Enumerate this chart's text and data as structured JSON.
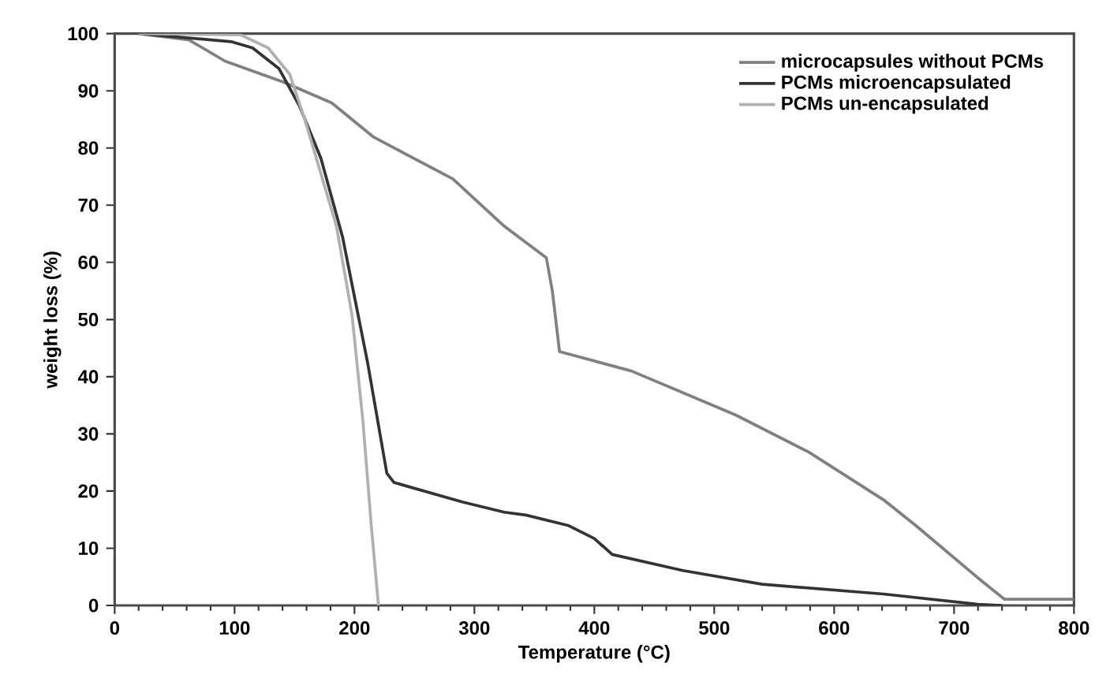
{
  "chart_data": {
    "type": "line",
    "xlabel": "Temperature (°C)",
    "ylabel": "weight loss (%)",
    "xlim": [
      0,
      800
    ],
    "ylim": [
      0,
      100
    ],
    "xticks": [
      0,
      100,
      200,
      300,
      400,
      500,
      600,
      700,
      800
    ],
    "yticks": [
      0,
      10,
      20,
      30,
      40,
      50,
      60,
      70,
      80,
      90,
      100
    ],
    "grid": false,
    "legend": "top right",
    "marker": "none",
    "line_style": "solid",
    "series": [
      {
        "name": "microcapsules without PCMs",
        "color": "#808080",
        "x": [
          20,
          62,
          92,
          141,
          181,
          216,
          282,
          325,
          360,
          365,
          371,
          431,
          518,
          579,
          641,
          668,
          720,
          742,
          800
        ],
        "values": [
          100,
          98.9,
          95.2,
          91.5,
          87.9,
          81.9,
          74.6,
          66.3,
          60.8,
          55,
          44.4,
          41,
          33.3,
          26.8,
          18.5,
          14,
          4.8,
          1.1,
          1.1
        ]
      },
      {
        "name": "PCMs microencapsulated",
        "color": "#333333",
        "x": [
          20,
          97,
          115,
          137,
          154,
          172,
          190,
          211,
          227,
          233,
          290,
          325,
          343,
          378,
          400,
          415,
          474,
          540,
          641,
          720,
          740
        ],
        "values": [
          100,
          98.6,
          97.5,
          93.9,
          87.4,
          78.2,
          64.5,
          42.4,
          23.1,
          21.5,
          18.1,
          16.3,
          15.8,
          14,
          11.7,
          8.9,
          6.1,
          3.7,
          2,
          0.2,
          0
        ]
      },
      {
        "name": "PCMs un-encapsulated",
        "color": "#b0b0b0",
        "x": [
          20,
          105,
          128,
          146,
          159,
          172,
          185,
          198,
          207,
          214,
          220
        ],
        "values": [
          100,
          99.8,
          97.5,
          92.9,
          84.7,
          75.5,
          66.3,
          50.7,
          32.3,
          14,
          0
        ]
      }
    ]
  }
}
